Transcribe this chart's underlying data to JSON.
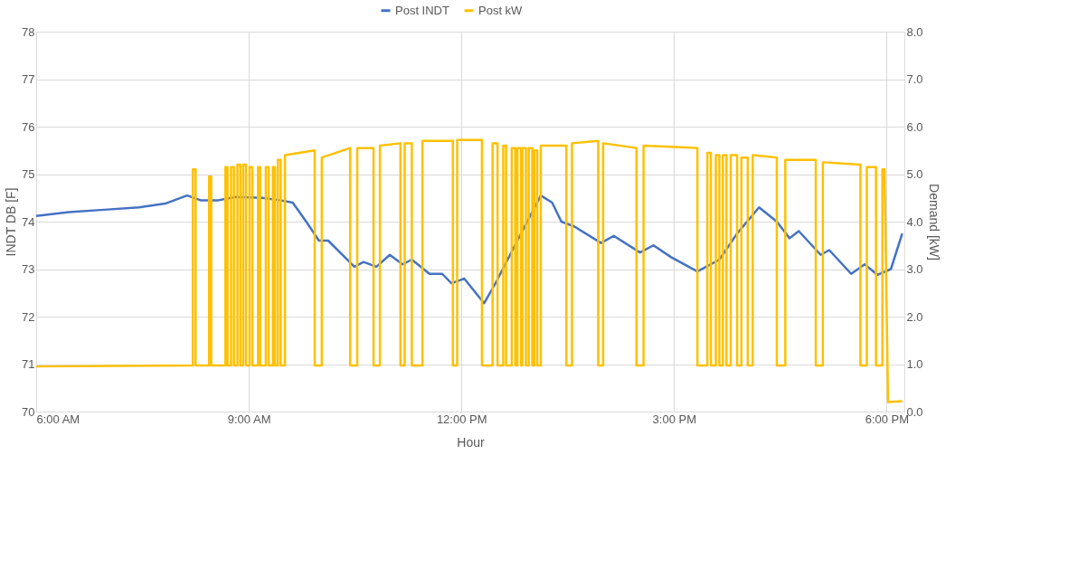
{
  "chart_data": {
    "type": "line",
    "xlabel": "Hour",
    "ylabel": "INDT DB [F]",
    "y2label": "Demand [kW]",
    "xlim": [
      6,
      18.25
    ],
    "xticks": [
      {
        "value": 6,
        "label": "6:00 AM"
      },
      {
        "value": 9,
        "label": "9:00 AM"
      },
      {
        "value": 12,
        "label": "12:00 PM"
      },
      {
        "value": 15,
        "label": "3:00 PM"
      },
      {
        "value": 18,
        "label": "6:00 PM"
      }
    ],
    "ylim": [
      70,
      78
    ],
    "yticks": [
      70,
      71,
      72,
      73,
      74,
      75,
      76,
      77,
      78
    ],
    "y2lim": [
      0,
      8
    ],
    "y2ticks": [
      {
        "value": 0,
        "label": "0.0"
      },
      {
        "value": 1,
        "label": "1.0"
      },
      {
        "value": 2,
        "label": "2.0"
      },
      {
        "value": 3,
        "label": "3.0"
      },
      {
        "value": 4,
        "label": "4.0"
      },
      {
        "value": 5,
        "label": "5.0"
      },
      {
        "value": 6,
        "label": "6.0"
      },
      {
        "value": 7,
        "label": "7.0"
      },
      {
        "value": 8,
        "label": "8.0"
      }
    ],
    "grid": true,
    "legend": "top",
    "line_style": "solid",
    "marker": "none",
    "series": [
      {
        "name": "Post INDT",
        "color": "#4472c4",
        "x": [
          6.0,
          6.46,
          6.96,
          7.45,
          7.82,
          8.13,
          8.32,
          8.57,
          8.82,
          9.19,
          9.44,
          9.62,
          9.81,
          9.99,
          10.12,
          10.49,
          10.62,
          10.8,
          10.99,
          11.17,
          11.3,
          11.55,
          11.73,
          11.86,
          12.04,
          12.32,
          12.48,
          12.79,
          13.12,
          13.28,
          13.41,
          13.59,
          13.97,
          14.15,
          14.52,
          14.71,
          14.96,
          15.33,
          15.64,
          15.89,
          16.2,
          16.45,
          16.63,
          16.76,
          17.07,
          17.19,
          17.5,
          17.69,
          17.87,
          18.06,
          18.22
        ],
        "values": [
          74.12,
          74.2,
          74.25,
          74.3,
          74.38,
          74.55,
          74.45,
          74.45,
          74.52,
          74.5,
          74.45,
          74.4,
          74.0,
          73.6,
          73.6,
          73.05,
          73.15,
          73.05,
          73.3,
          73.1,
          73.2,
          72.9,
          72.9,
          72.7,
          72.8,
          72.28,
          72.7,
          73.6,
          74.55,
          74.4,
          74.0,
          73.9,
          73.55,
          73.7,
          73.35,
          73.5,
          73.25,
          72.95,
          73.2,
          73.75,
          74.3,
          74.0,
          73.65,
          73.8,
          73.3,
          73.4,
          72.9,
          73.1,
          72.88,
          73.0,
          73.75
        ]
      },
      {
        "name": "Post kW",
        "color": "#ffc000",
        "axis": "y2",
        "x": [
          6.0,
          8.2,
          8.21,
          8.21,
          8.25,
          8.25,
          8.44,
          8.44,
          8.47,
          8.47,
          8.67,
          8.67,
          8.7,
          8.7,
          8.75,
          8.75,
          8.79,
          8.79,
          8.84,
          8.84,
          8.88,
          8.88,
          8.92,
          8.92,
          8.96,
          8.96,
          9.01,
          9.01,
          9.05,
          9.05,
          9.13,
          9.13,
          9.16,
          9.16,
          9.24,
          9.24,
          9.28,
          9.28,
          9.34,
          9.34,
          9.37,
          9.37,
          9.41,
          9.41,
          9.45,
          9.45,
          9.51,
          9.51,
          9.93,
          9.93,
          10.03,
          10.03,
          10.43,
          10.43,
          10.53,
          10.53,
          10.76,
          10.76,
          10.85,
          10.85,
          11.14,
          11.14,
          11.2,
          11.2,
          11.3,
          11.3,
          11.45,
          11.45,
          11.88,
          11.88,
          11.94,
          11.94,
          12.29,
          12.29,
          12.44,
          12.44,
          12.51,
          12.51,
          12.59,
          12.59,
          12.63,
          12.63,
          12.71,
          12.71,
          12.76,
          12.76,
          12.79,
          12.79,
          12.84,
          12.84,
          12.86,
          12.86,
          12.91,
          12.91,
          12.95,
          12.95,
          13.0,
          13.0,
          13.03,
          13.03,
          13.07,
          13.07,
          13.12,
          13.12,
          13.48,
          13.48,
          13.56,
          13.56,
          13.93,
          13.93,
          14.0,
          14.0,
          14.47,
          14.47,
          14.57,
          14.57,
          15.33,
          15.33,
          15.47,
          15.47,
          15.52,
          15.52,
          15.59,
          15.59,
          15.64,
          15.64,
          15.69,
          15.69,
          15.74,
          15.74,
          15.8,
          15.8,
          15.89,
          15.89,
          15.95,
          15.95,
          16.04,
          16.04,
          16.11,
          16.11,
          16.45,
          16.45,
          16.57,
          16.57,
          17.0,
          17.0,
          17.1,
          17.1,
          17.63,
          17.63,
          17.72,
          17.72,
          17.85,
          17.85,
          17.94,
          17.94,
          17.97,
          18.02,
          18.22
        ],
        "values": [
          0.95,
          0.97,
          0.97,
          5.1,
          5.1,
          0.97,
          0.97,
          4.95,
          4.95,
          0.97,
          0.97,
          5.15,
          5.15,
          0.97,
          0.97,
          5.15,
          5.15,
          0.97,
          0.97,
          5.2,
          5.2,
          0.97,
          0.97,
          5.2,
          5.2,
          0.97,
          0.97,
          5.15,
          5.15,
          0.97,
          0.97,
          5.15,
          5.15,
          0.97,
          0.97,
          5.15,
          5.15,
          0.97,
          0.97,
          5.15,
          5.15,
          0.97,
          0.97,
          5.3,
          5.3,
          0.97,
          0.97,
          5.4,
          5.5,
          0.97,
          0.97,
          5.35,
          5.55,
          0.97,
          0.97,
          5.55,
          5.55,
          0.97,
          0.97,
          5.6,
          5.65,
          0.97,
          0.97,
          5.65,
          5.65,
          0.97,
          0.97,
          5.7,
          5.7,
          0.97,
          0.97,
          5.72,
          5.72,
          0.97,
          0.97,
          5.65,
          5.65,
          0.97,
          0.97,
          5.6,
          5.6,
          0.97,
          0.97,
          5.55,
          5.55,
          0.97,
          0.97,
          5.55,
          5.55,
          0.97,
          0.97,
          5.55,
          5.55,
          0.97,
          0.97,
          5.55,
          5.55,
          0.97,
          0.97,
          5.5,
          5.5,
          0.97,
          0.97,
          5.6,
          5.6,
          0.97,
          0.97,
          5.65,
          5.7,
          0.97,
          0.97,
          5.65,
          5.55,
          0.97,
          0.97,
          5.6,
          5.55,
          0.97,
          0.97,
          5.45,
          5.45,
          0.97,
          0.97,
          5.4,
          5.4,
          0.97,
          0.97,
          5.4,
          5.4,
          0.97,
          0.97,
          5.4,
          5.4,
          0.97,
          0.97,
          5.35,
          5.35,
          0.97,
          0.97,
          5.4,
          5.35,
          0.97,
          0.97,
          5.3,
          5.3,
          0.97,
          0.97,
          5.25,
          5.2,
          0.97,
          0.97,
          5.15,
          5.15,
          0.97,
          0.97,
          5.1,
          5.1,
          0.2,
          0.22
        ]
      }
    ]
  }
}
